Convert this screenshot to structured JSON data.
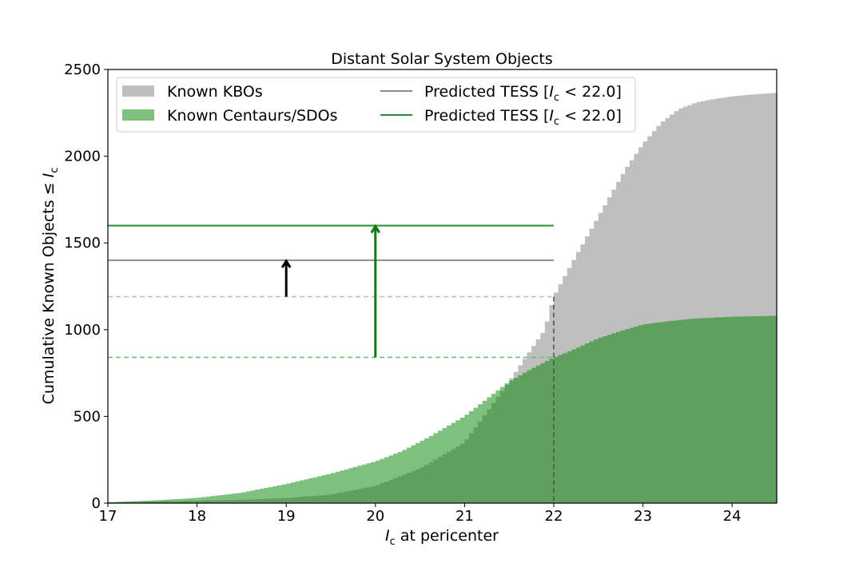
{
  "chart_data": {
    "type": "bar",
    "title": "Distant Solar System Objects",
    "xlabel_var": "I",
    "xlabel_sub": "c",
    "xlabel_rest": " at pericenter",
    "ylabel_text": "Cumulative Known Objects ≤ ",
    "ylabel_var": "I",
    "ylabel_sub": "c",
    "xlim": [
      17,
      24.5
    ],
    "ylim": [
      0,
      2500
    ],
    "xticks": [
      "17",
      "18",
      "19",
      "20",
      "21",
      "22",
      "23",
      "24"
    ],
    "yticks": [
      "0",
      "500",
      "1000",
      "1500",
      "2000",
      "2500"
    ],
    "bin_width": 0.05,
    "legend_position": "upper-left",
    "series": [
      {
        "name": "Known KBOs",
        "kind": "cumulative-histogram",
        "color": "#bfbfbf",
        "x": [
          17.0,
          17.5,
          18.0,
          18.5,
          19.0,
          19.5,
          20.0,
          20.5,
          21.0,
          21.3,
          21.5,
          21.7,
          21.9,
          22.0,
          22.2,
          22.4,
          22.6,
          22.8,
          23.0,
          23.2,
          23.4,
          23.6,
          23.8,
          24.0,
          24.2,
          24.5
        ],
        "y": [
          5,
          10,
          15,
          20,
          30,
          50,
          100,
          200,
          350,
          560,
          700,
          850,
          1000,
          1190,
          1380,
          1560,
          1740,
          1920,
          2070,
          2190,
          2270,
          2310,
          2330,
          2345,
          2355,
          2365
        ]
      },
      {
        "name": "Known Centaurs/SDOs",
        "kind": "cumulative-histogram",
        "color": "#7ec07e",
        "x": [
          17.0,
          17.5,
          18.0,
          18.5,
          19.0,
          19.5,
          20.0,
          20.3,
          20.6,
          21.0,
          21.3,
          21.5,
          21.7,
          22.0,
          22.2,
          22.5,
          22.8,
          23.0,
          23.3,
          23.6,
          24.0,
          24.5
        ],
        "y": [
          5,
          15,
          30,
          60,
          110,
          170,
          240,
          300,
          380,
          500,
          620,
          700,
          760,
          840,
          880,
          950,
          1000,
          1030,
          1050,
          1065,
          1075,
          1080
        ]
      }
    ],
    "overlap_color": "#5fa05f",
    "predicted_lines": [
      {
        "name": "Predicted TESS [I_c < 22.0]",
        "label_prefix": "Predicted TESS [",
        "label_var": "I",
        "label_sub": "c",
        "label_suffix": " < 22.0]",
        "y": 1400,
        "x_from": 17,
        "x_to": 22.0,
        "color": "#8c8c8c"
      },
      {
        "name": "Predicted TESS [I_c < 22.0]",
        "label_prefix": "Predicted TESS [",
        "label_var": "I",
        "label_sub": "c",
        "label_suffix": " < 22.0]",
        "y": 1600,
        "x_from": 17,
        "x_to": 22.0,
        "color": "#2e8b2e"
      }
    ],
    "known_dashed_lines": [
      {
        "y": 1190,
        "x_from": 17,
        "x_to": 22.0,
        "color": "#bdbdbd"
      },
      {
        "y": 840,
        "x_from": 17,
        "x_to": 22.0,
        "color": "#6cba6c"
      }
    ],
    "vertical_dashed": {
      "x": 22.0,
      "color": "#3a5a3a"
    },
    "arrows": [
      {
        "x": 19.0,
        "y_from": 1190,
        "y_to": 1400,
        "color": "#000000"
      },
      {
        "x": 20.0,
        "y_from": 840,
        "y_to": 1600,
        "color": "#0a7a0a"
      }
    ]
  }
}
